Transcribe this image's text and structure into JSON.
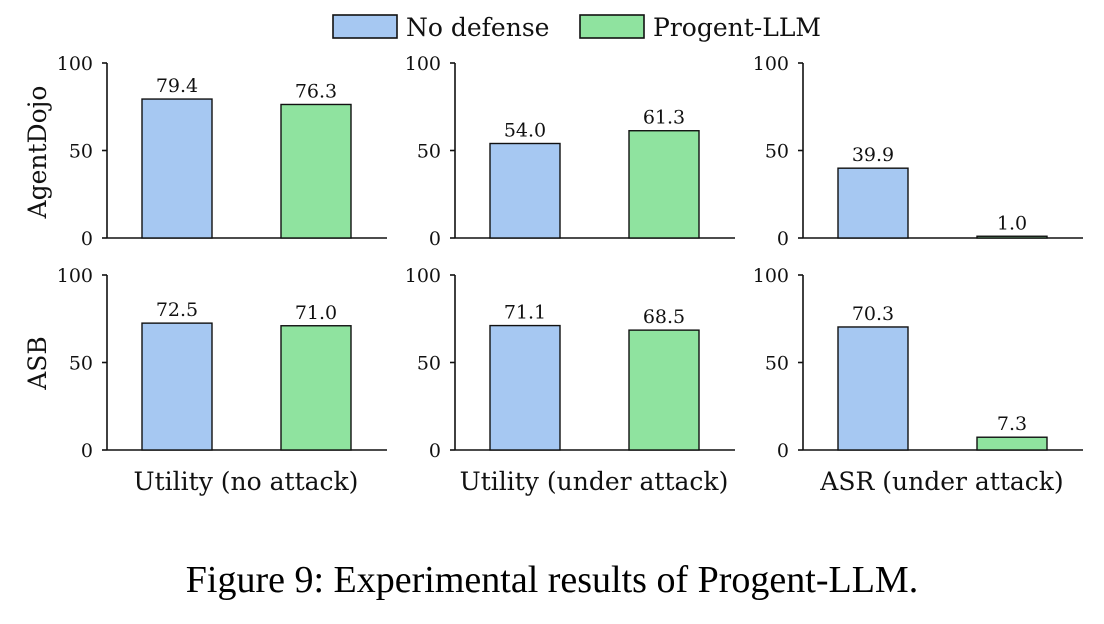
{
  "colors": {
    "no_defense": "#a6c8f2",
    "progent_llm": "#8fe39f"
  },
  "chart_data": {
    "type": "bar",
    "legend": [
      "No defense",
      "Progent-LLM"
    ],
    "legend_position": "top-center",
    "rows": [
      "AgentDojo",
      "ASB"
    ],
    "columns": [
      "Utility (no attack)",
      "Utility (under attack)",
      "ASR (under attack)"
    ],
    "ylim": [
      0,
      100
    ],
    "yticks": [
      0,
      50,
      100
    ],
    "panels": [
      {
        "row": "AgentDojo",
        "xlabel": "Utility (no attack)",
        "values": [
          79.4,
          76.3
        ],
        "labels": [
          "79.4",
          "76.3"
        ]
      },
      {
        "row": "AgentDojo",
        "xlabel": "Utility (under attack)",
        "values": [
          54.0,
          61.3
        ],
        "labels": [
          "54.0",
          "61.3"
        ]
      },
      {
        "row": "AgentDojo",
        "xlabel": "ASR (under attack)",
        "values": [
          39.9,
          1.0
        ],
        "labels": [
          "39.9",
          "1.0"
        ]
      },
      {
        "row": "ASB",
        "xlabel": "Utility (no attack)",
        "values": [
          72.5,
          71.0
        ],
        "labels": [
          "72.5",
          "71.0"
        ]
      },
      {
        "row": "ASB",
        "xlabel": "Utility (under attack)",
        "values": [
          71.1,
          68.5
        ],
        "labels": [
          "71.1",
          "68.5"
        ]
      },
      {
        "row": "ASB",
        "xlabel": "ASR (under attack)",
        "values": [
          70.3,
          7.3
        ],
        "labels": [
          "70.3",
          "7.3"
        ]
      }
    ]
  },
  "caption": "Figure 9: Experimental results of Progent-LLM."
}
